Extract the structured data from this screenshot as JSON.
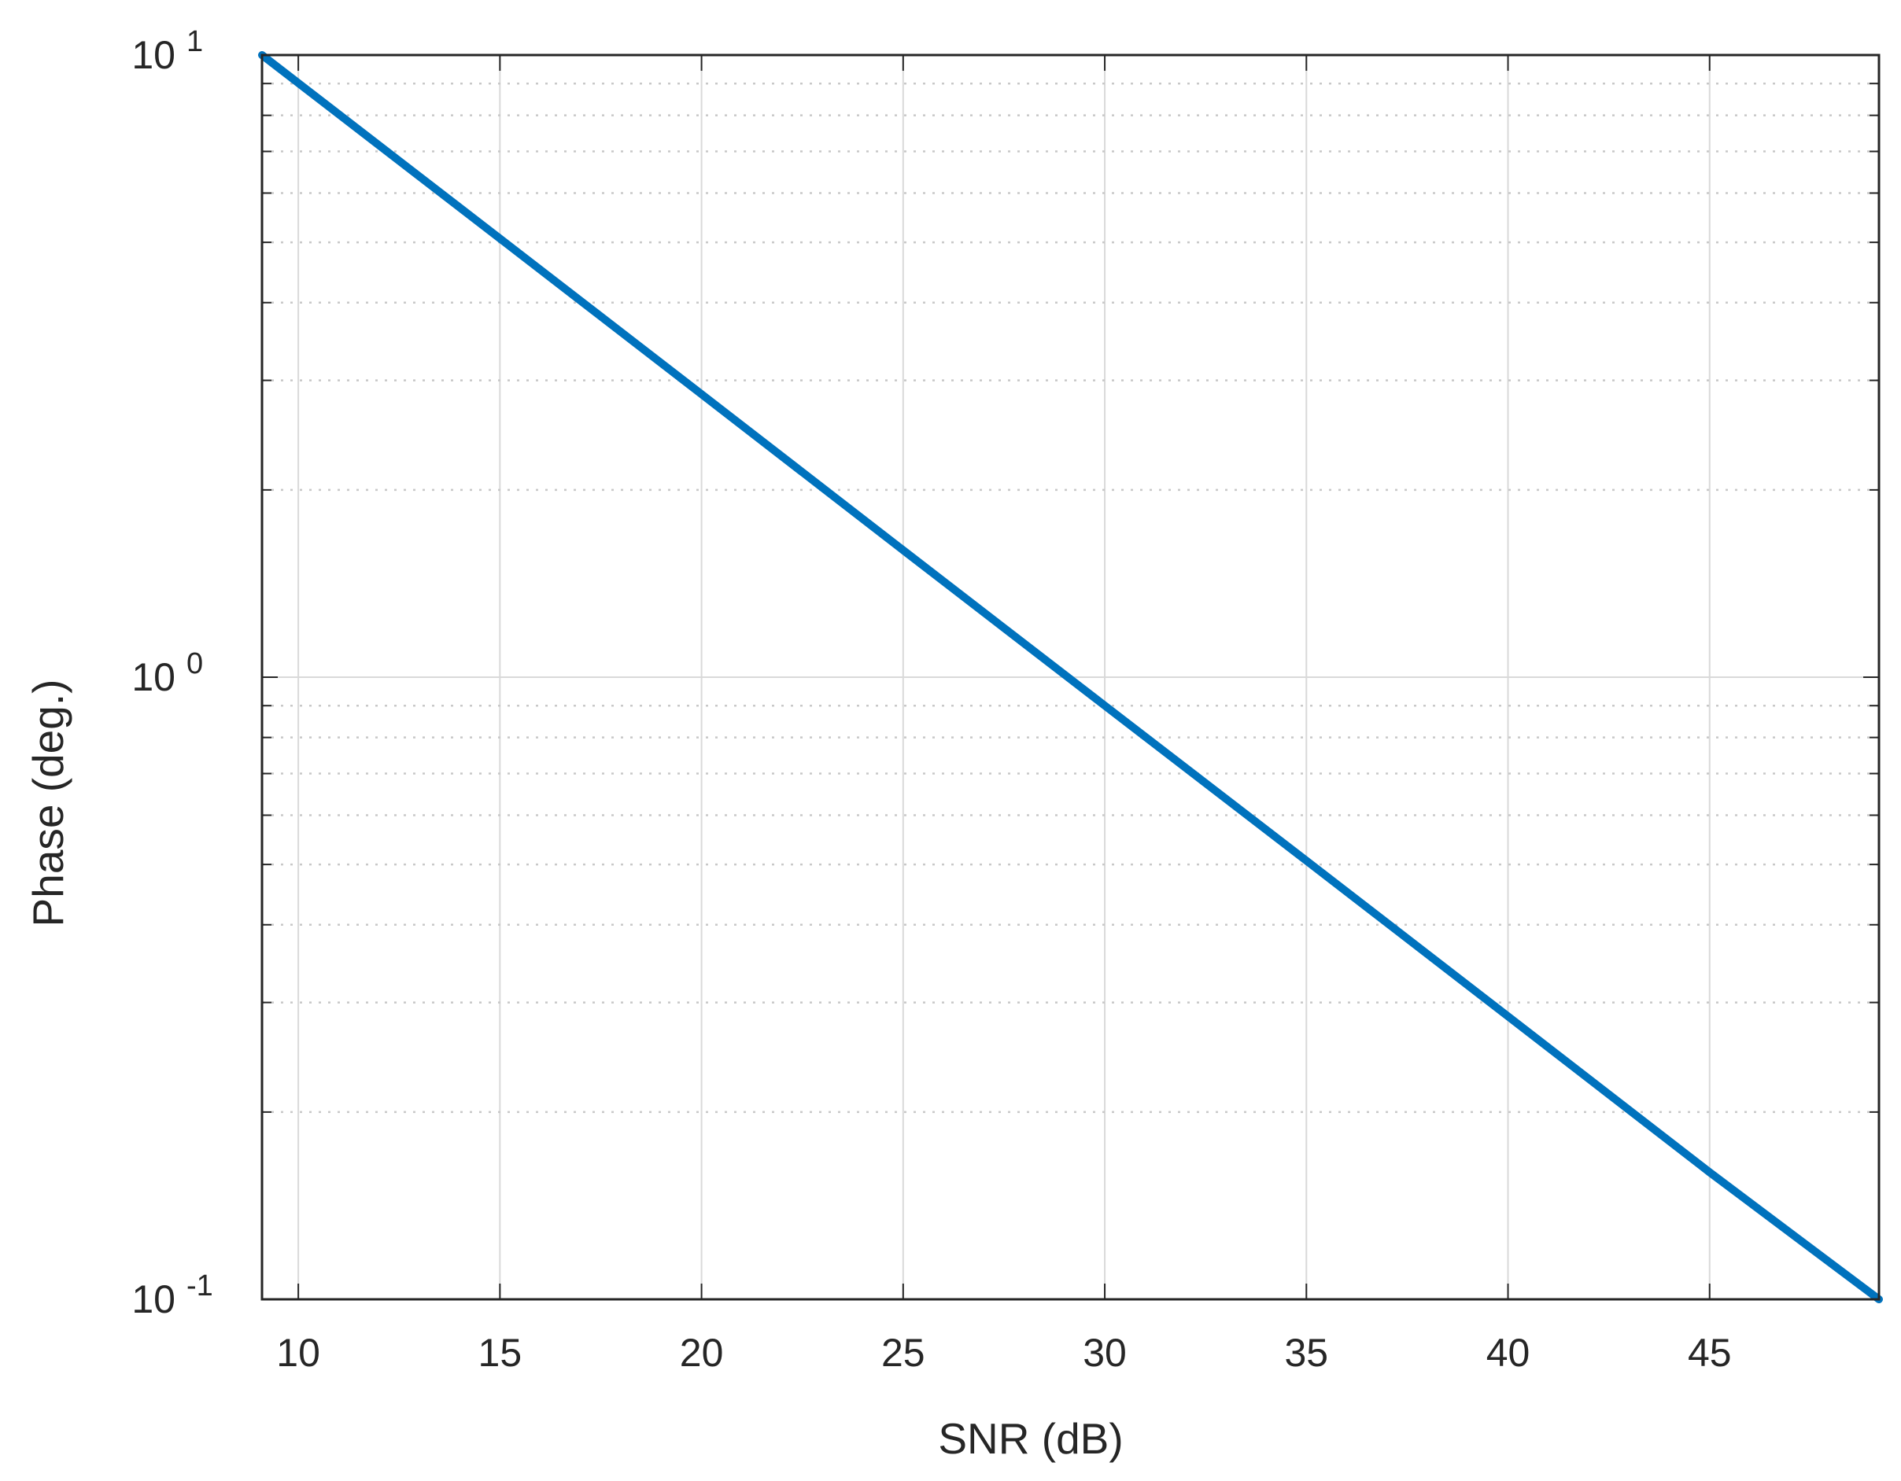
{
  "chart_data": {
    "type": "line",
    "title": "",
    "xlabel": "SNR (dB)",
    "ylabel": "Phase (deg.)",
    "x_scale": "linear",
    "y_scale": "log",
    "xlim": [
      9.1,
      49.2
    ],
    "ylim": [
      0.1,
      10
    ],
    "x_ticks": [
      10,
      15,
      20,
      25,
      30,
      35,
      40,
      45
    ],
    "x_tick_labels": [
      "10",
      "15",
      "20",
      "25",
      "30",
      "35",
      "40",
      "45"
    ],
    "y_ticks": [
      {
        "value": 10,
        "base": "10",
        "exponent": "1"
      },
      {
        "value": 1,
        "base": "10",
        "exponent": "0"
      },
      {
        "value": 0.1,
        "base": "10",
        "exponent": "-1"
      }
    ],
    "grid": true,
    "minor_grid": true,
    "series": [
      {
        "color": "#0072BD",
        "x": [
          9.1,
          15,
          20,
          25,
          30,
          35,
          40,
          45,
          49.2
        ],
        "y": [
          10,
          5.07,
          2.85,
          1.6,
          0.9,
          0.507,
          0.285,
          0.16,
          0.1
        ]
      }
    ],
    "colors": {
      "line": "#0072BD",
      "axes": "#262626",
      "grid": "#d9d9d9",
      "minor_grid": "#c8c8c8"
    }
  }
}
